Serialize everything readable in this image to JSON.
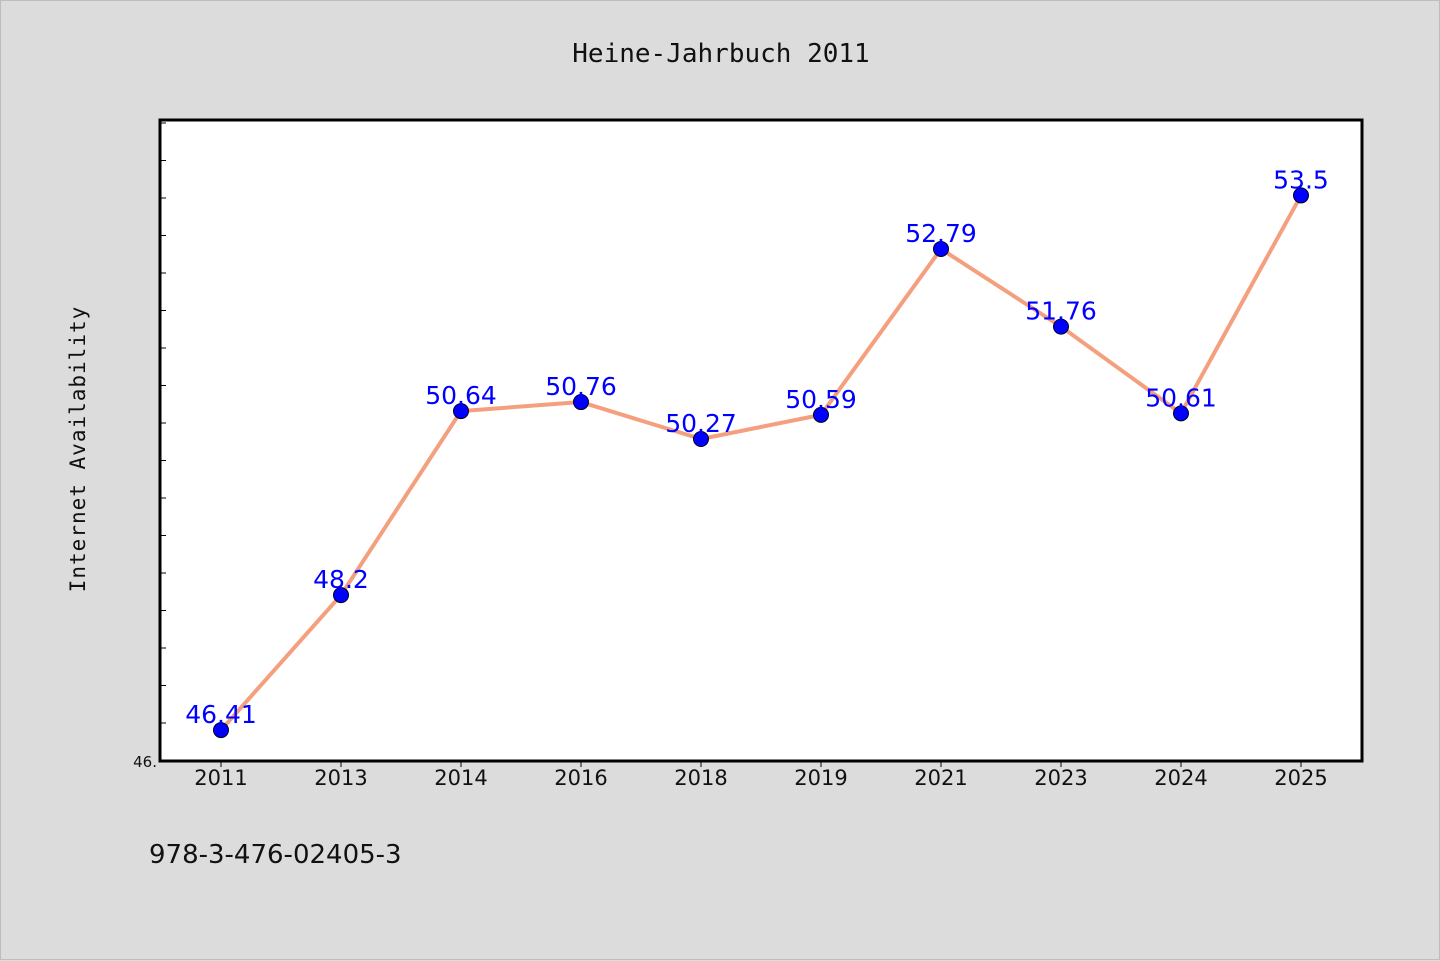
{
  "chart_data": {
    "type": "line",
    "title": "Heine-Jahrbuch 2011",
    "xlabel": "",
    "ylabel": "Internet Availability",
    "categories": [
      "2011",
      "2013",
      "2014",
      "2016",
      "2018",
      "2019",
      "2021",
      "2023",
      "2024",
      "2025"
    ],
    "series": [
      {
        "values": [
          46.41,
          48.2,
          50.64,
          50.76,
          50.27,
          50.59,
          52.79,
          51.76,
          50.61,
          53.5
        ],
        "data_labels": [
          "46.41",
          "48.2",
          "50.64",
          "50.76",
          "50.27",
          "50.59",
          "52.79",
          "51.76",
          "50.61",
          "53.5"
        ],
        "line_color": "#f4a07f",
        "marker_color": "#0000ff",
        "label_color": "#0000ff"
      }
    ],
    "ylim": [
      46.0,
      54.5
    ],
    "y_tick_label": "46.",
    "grid": false,
    "legend": "none"
  },
  "annotation": "978-3-476-02405-3",
  "colors": {
    "figure_bg": "#dcdcdc",
    "plot_bg": "#ffffff",
    "axes": "#000000"
  }
}
